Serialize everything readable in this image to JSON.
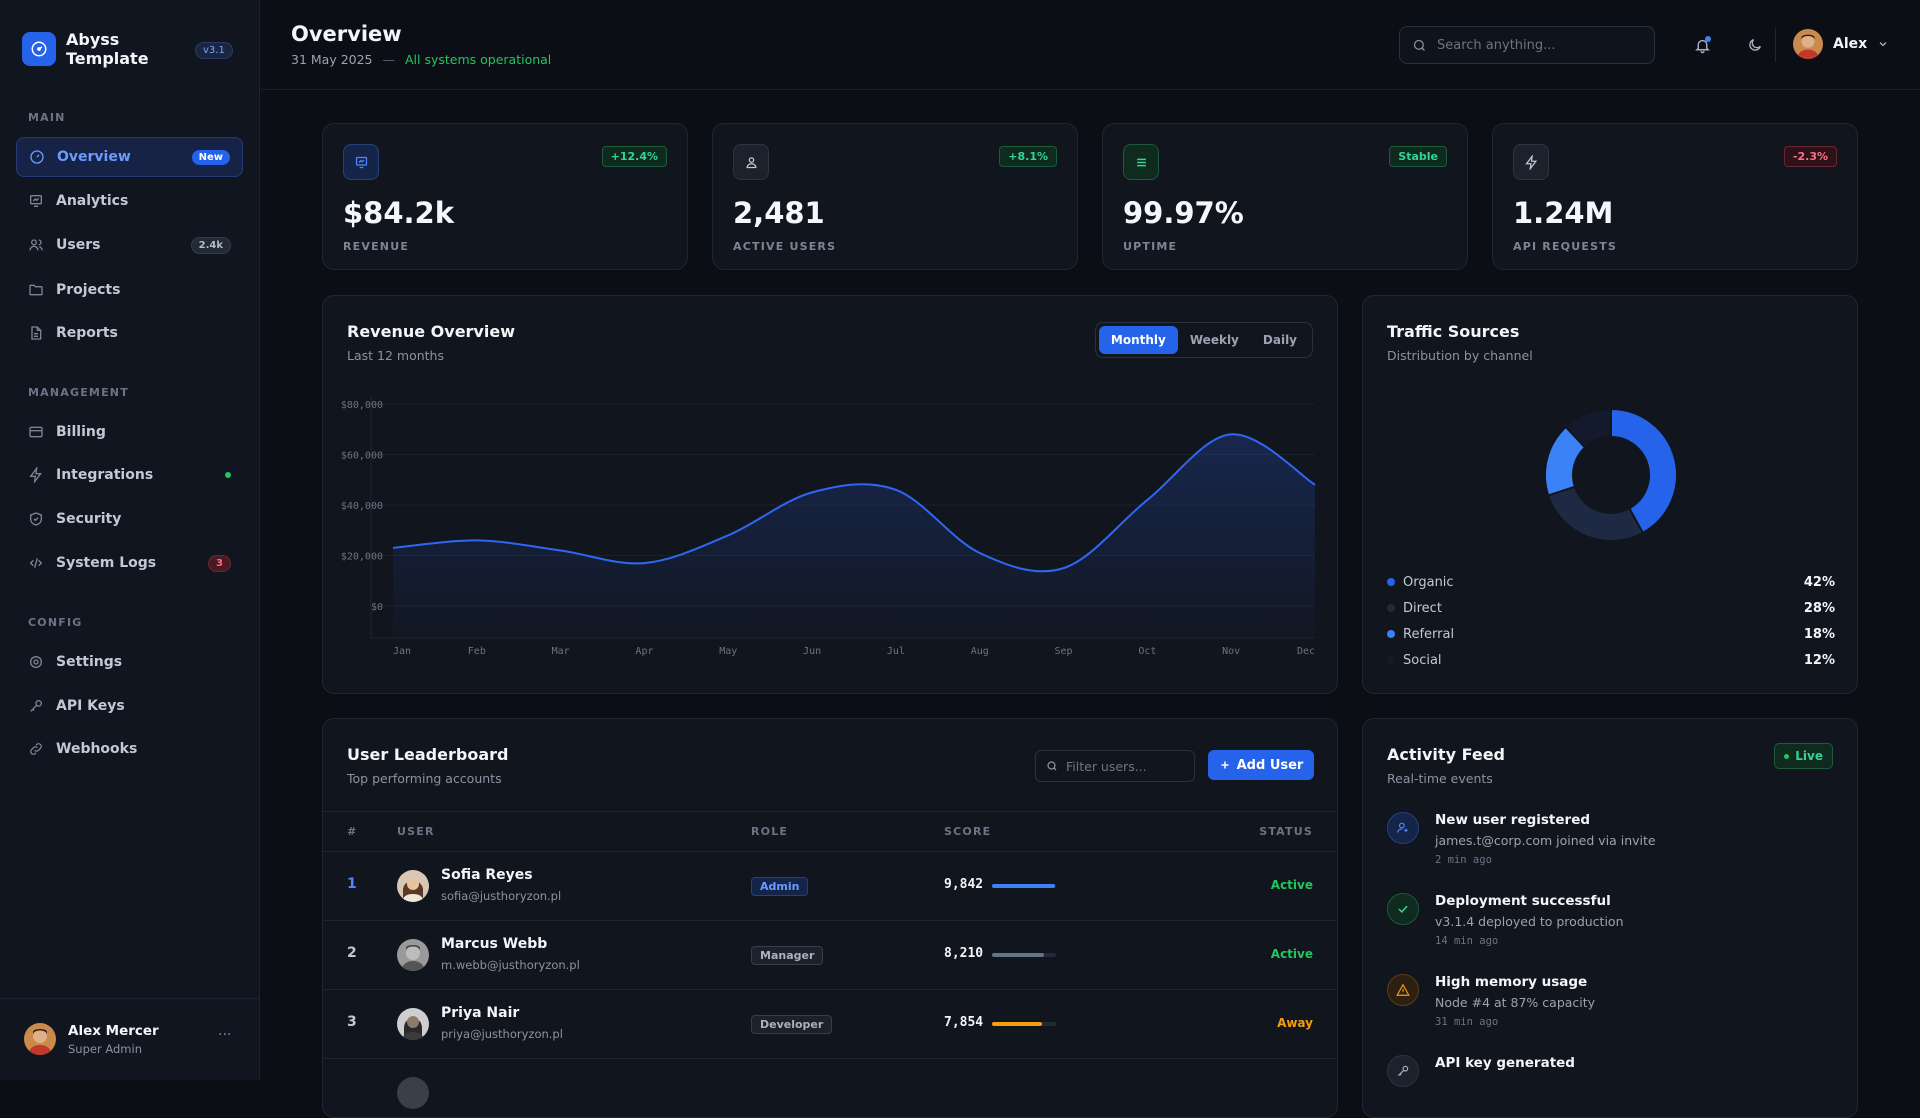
{
  "brand": {
    "name": "Abyss Template",
    "version": "v3.1"
  },
  "sidebar": {
    "sections": [
      {
        "label": "MAIN",
        "items": [
          {
            "label": "Overview",
            "icon": "dashboard-icon",
            "badge": "New",
            "active": true
          },
          {
            "label": "Analytics",
            "icon": "chart-icon"
          },
          {
            "label": "Users",
            "icon": "users-icon",
            "badge": "2.4k"
          },
          {
            "label": "Projects",
            "icon": "folder-icon"
          },
          {
            "label": "Reports",
            "icon": "document-icon"
          }
        ]
      },
      {
        "label": "MANAGEMENT",
        "items": [
          {
            "label": "Billing",
            "icon": "credit-card-icon"
          },
          {
            "label": "Integrations",
            "icon": "lightning-icon",
            "dot": true
          },
          {
            "label": "Security",
            "icon": "shield-icon"
          },
          {
            "label": "System Logs",
            "icon": "code-icon",
            "badge": "3"
          }
        ]
      },
      {
        "label": "CONFIG",
        "items": [
          {
            "label": "Settings",
            "icon": "gear-icon"
          },
          {
            "label": "API Keys",
            "icon": "key-icon"
          },
          {
            "label": "Webhooks",
            "icon": "link-icon"
          }
        ]
      }
    ],
    "user": {
      "name": "Alex Mercer",
      "role": "Super Admin",
      "menu": "···"
    }
  },
  "header": {
    "title": "Overview",
    "date": "31 May 2025",
    "separator": "—",
    "status": "All systems operational",
    "search_placeholder": "Search anything...",
    "user_name": "Alex"
  },
  "stats": [
    {
      "value": "$84.2k",
      "label": "REVENUE",
      "delta": "+12.4%",
      "tone": "up",
      "icon": "presentation-icon"
    },
    {
      "value": "2,481",
      "label": "ACTIVE USERS",
      "delta": "+8.1%",
      "tone": "up",
      "icon": "users-icon"
    },
    {
      "value": "99.97%",
      "label": "UPTIME",
      "delta": "Stable",
      "tone": "up",
      "icon": "list-icon"
    },
    {
      "value": "1.24M",
      "label": "API REQUESTS",
      "delta": "-2.3%",
      "tone": "down",
      "icon": "lightning-icon"
    }
  ],
  "revenue": {
    "title": "Revenue Overview",
    "subtitle": "Last 12 months",
    "tabs": [
      "Monthly",
      "Weekly",
      "Daily"
    ],
    "active_tab": "Monthly"
  },
  "chart_data": {
    "type": "area",
    "x": [
      "Jan",
      "Feb",
      "Mar",
      "Apr",
      "May",
      "Jun",
      "Jul",
      "Aug",
      "Sep",
      "Oct",
      "Nov",
      "Dec"
    ],
    "series": [
      {
        "values": [
          23000,
          26000,
          22000,
          17000,
          28000,
          45000,
          46000,
          21000,
          15000,
          42000,
          68000,
          48000
        ]
      }
    ],
    "y_ticks": [
      "$80,000",
      "$60,000",
      "$40,000",
      "$20,000",
      "$0"
    ],
    "ylim": [
      0,
      80000
    ],
    "grid": true,
    "color": "#2f67f3"
  },
  "traffic": {
    "title": "Traffic Sources",
    "subtitle": "Distribution by channel",
    "chart_data": {
      "type": "pie",
      "slices": [
        {
          "name": "Organic",
          "value": 42,
          "label": "42%",
          "color": "#2563eb"
        },
        {
          "name": "Direct",
          "value": 28,
          "label": "28%",
          "color": "#1e2a44"
        },
        {
          "name": "Referral",
          "value": 18,
          "label": "18%",
          "color": "#3b82f6"
        },
        {
          "name": "Social",
          "value": 12,
          "label": "12%",
          "color": "#131a2c"
        }
      ]
    }
  },
  "leaderboard": {
    "title": "User Leaderboard",
    "subtitle": "Top performing accounts",
    "filter_placeholder": "Filter users...",
    "add_label": "Add User",
    "columns": [
      "#",
      "USER",
      "ROLE",
      "SCORE",
      "STATUS"
    ],
    "rows": [
      {
        "rank": "1",
        "name": "Sofia Reyes",
        "email": "sofia@justhoryzon.pl",
        "role": "Admin",
        "score": "9,842",
        "fill": 0.98,
        "bar": "#3b82f6",
        "status": "Active"
      },
      {
        "rank": "2",
        "name": "Marcus Webb",
        "email": "m.webb@justhoryzon.pl",
        "role": "Manager",
        "score": "8,210",
        "fill": 0.82,
        "bar": "#64748b",
        "status": "Active"
      },
      {
        "rank": "3",
        "name": "Priya Nair",
        "email": "priya@justhoryzon.pl",
        "role": "Developer",
        "score": "7,854",
        "fill": 0.78,
        "bar": "#f59e0b",
        "status": "Away"
      }
    ]
  },
  "activity": {
    "title": "Activity Feed",
    "subtitle": "Real-time events",
    "live": "Live",
    "items": [
      {
        "title": "New user registered",
        "desc": "james.t@corp.com joined via invite",
        "time": "2 min ago",
        "icon": "user-add-icon",
        "tone": "blue"
      },
      {
        "title": "Deployment successful",
        "desc": "v3.1.4 deployed to production",
        "time": "14 min ago",
        "icon": "check-icon",
        "tone": "green"
      },
      {
        "title": "High memory usage",
        "desc": "Node #4 at 87% capacity",
        "time": "31 min ago",
        "icon": "warning-icon",
        "tone": "amber"
      },
      {
        "title": "API key generated",
        "desc": "",
        "time": "",
        "icon": "key-icon",
        "tone": "gray"
      }
    ]
  },
  "colors": {
    "accent": "#2563eb",
    "success": "#22c55e",
    "warning": "#f59e0b",
    "danger": "#f43f5e"
  }
}
